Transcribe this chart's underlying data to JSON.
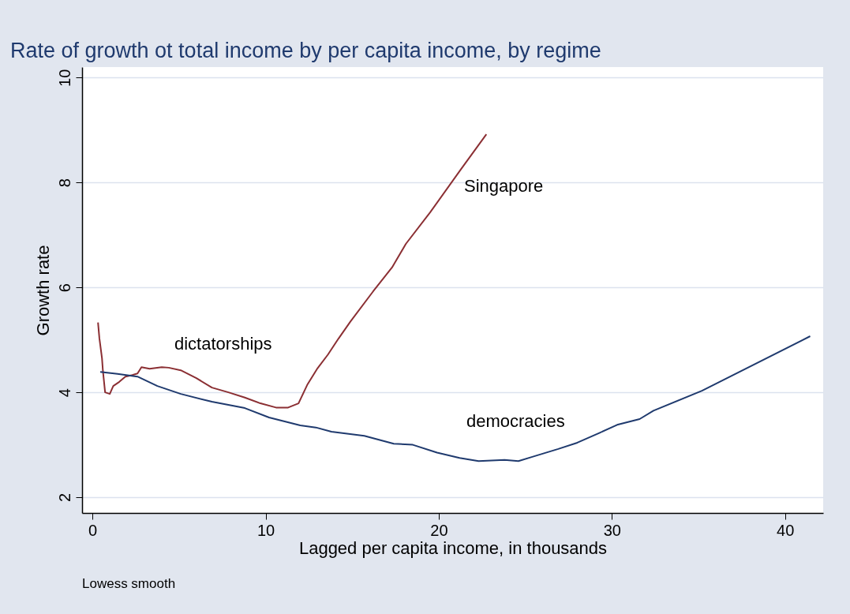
{
  "chart_data": {
    "type": "line",
    "title": "Rate of growth ot total income by per capita income, by regime",
    "xlabel": "Lagged per capita income, in thousands",
    "ylabel": "Growth rate",
    "xlim": [
      -0.6,
      42.2
    ],
    "xticks": [
      0,
      10,
      20,
      30,
      40
    ],
    "ylim": [
      1.7,
      10.2
    ],
    "yticks": [
      2,
      4,
      6,
      8,
      10
    ],
    "grid": "y",
    "marker": "none",
    "line_style": "solid",
    "series": [
      {
        "color": "#8b2f33",
        "x": [
          0.32,
          0.4,
          0.55,
          0.6,
          0.73,
          1.0,
          1.2,
          1.55,
          1.9,
          2.3,
          2.6,
          2.83,
          3.3,
          4.0,
          4.4,
          5.1,
          6.0,
          6.9,
          7.85,
          8.8,
          9.7,
          10.6,
          11.3,
          11.9,
          12.4,
          13.0,
          13.6,
          14.2,
          14.9,
          16.2,
          17.3,
          18.1,
          19.5,
          21.3,
          22.75
        ],
        "values": [
          5.33,
          5.03,
          4.65,
          4.42,
          4.0,
          3.97,
          4.12,
          4.2,
          4.3,
          4.33,
          4.36,
          4.48,
          4.45,
          4.48,
          4.47,
          4.42,
          4.27,
          4.09,
          4.0,
          3.9,
          3.79,
          3.71,
          3.71,
          3.79,
          4.14,
          4.46,
          4.72,
          5.02,
          5.35,
          5.92,
          6.38,
          6.83,
          7.43,
          8.26,
          8.92
        ]
      },
      {
        "color": "#1f3a6e",
        "x": [
          0.45,
          1.45,
          2.6,
          3.75,
          5.1,
          6.9,
          8.8,
          10.2,
          12.0,
          12.9,
          13.8,
          15.7,
          17.4,
          18.5,
          19.9,
          21.2,
          22.3,
          23.8,
          24.6,
          25.4,
          26.9,
          28.0,
          29.3,
          30.3,
          31.6,
          32.4,
          35.2,
          41.45
        ],
        "values": [
          4.39,
          4.35,
          4.3,
          4.12,
          3.97,
          3.82,
          3.7,
          3.52,
          3.37,
          3.33,
          3.25,
          3.17,
          3.02,
          3.0,
          2.85,
          2.75,
          2.69,
          2.71,
          2.69,
          2.77,
          2.92,
          3.04,
          3.23,
          3.38,
          3.49,
          3.65,
          4.03,
          5.07
        ]
      }
    ],
    "annotations": [
      "Singapore",
      "dictatorships",
      "democracies",
      "Lowess smooth"
    ]
  }
}
